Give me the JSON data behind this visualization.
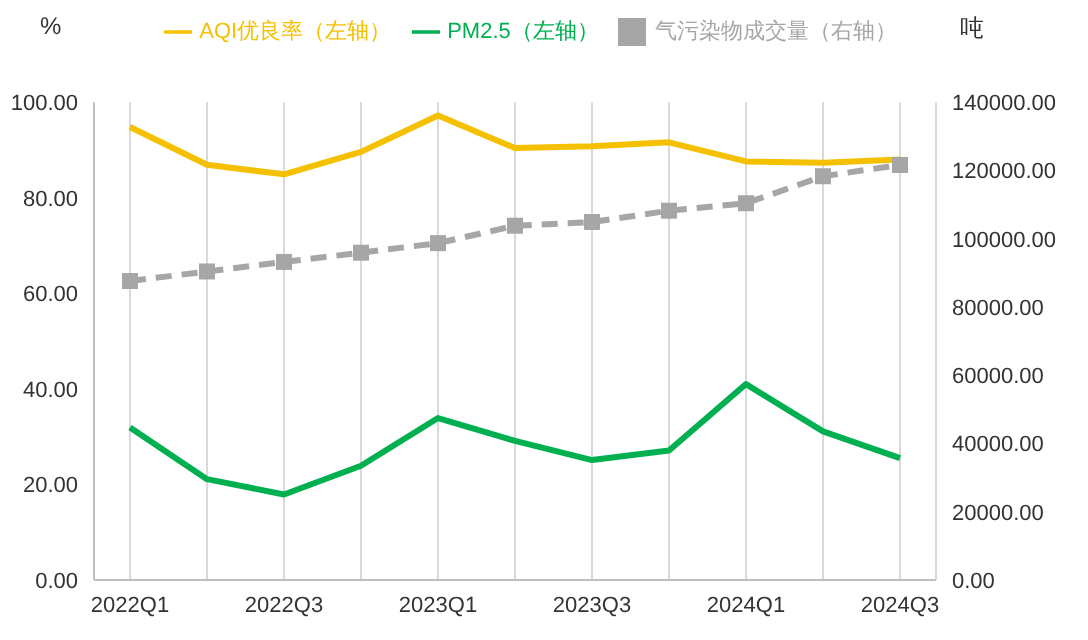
{
  "chart_data": {
    "type": "line",
    "ylabel": "%",
    "y2label": "吨",
    "categories": [
      "2022Q1",
      null,
      "2022Q3",
      null,
      "2023Q1",
      null,
      "2023Q3",
      null,
      "2024Q1",
      null,
      "2024Q3"
    ],
    "series": [
      {
        "name": "AQI优良率（左轴）",
        "color": "#f5c000",
        "marker": "none",
        "line_style": "solid",
        "values": [
          94.8,
          86.9,
          84.9,
          89.6,
          97.2,
          90.4,
          90.8,
          91.6,
          87.6,
          87.3,
          88.0
        ]
      },
      {
        "name": "PM2.5（左轴）",
        "color": "#00b050",
        "marker": "none",
        "line_style": "solid",
        "values": [
          31.9,
          21.1,
          17.9,
          23.9,
          33.9,
          29.1,
          25.1,
          27.1,
          41.0,
          31.1,
          25.5
        ]
      },
      {
        "name": "气污染物成交量（右轴）",
        "color": "#a6a6a6",
        "marker": "square",
        "line_style": "dashed",
        "axis": "y2",
        "values": [
          87600,
          90400,
          93200,
          95900,
          98700,
          103800,
          104900,
          108200,
          110400,
          118300,
          121600
        ]
      }
    ],
    "ylim": [
      0,
      100
    ],
    "yticks": [
      {
        "value": 0,
        "label": "0.00"
      },
      {
        "value": 20,
        "label": "20.00"
      },
      {
        "value": 40,
        "label": "40.00"
      },
      {
        "value": 60,
        "label": "60.00"
      },
      {
        "value": 80,
        "label": "80.00"
      },
      {
        "value": 100,
        "label": "100.00"
      }
    ],
    "y2lim": [
      0,
      140000
    ],
    "y2ticks": [
      {
        "value": 0,
        "label": "0.00"
      },
      {
        "value": 20000,
        "label": "20000.00"
      },
      {
        "value": 40000,
        "label": "40000.00"
      },
      {
        "value": 60000,
        "label": "60000.00"
      },
      {
        "value": 80000,
        "label": "80000.00"
      },
      {
        "value": 100000,
        "label": "100000.00"
      },
      {
        "value": 120000,
        "label": "120000.00"
      },
      {
        "value": 140000,
        "label": "140000.00"
      }
    ],
    "grid": "x",
    "legend": "top"
  }
}
